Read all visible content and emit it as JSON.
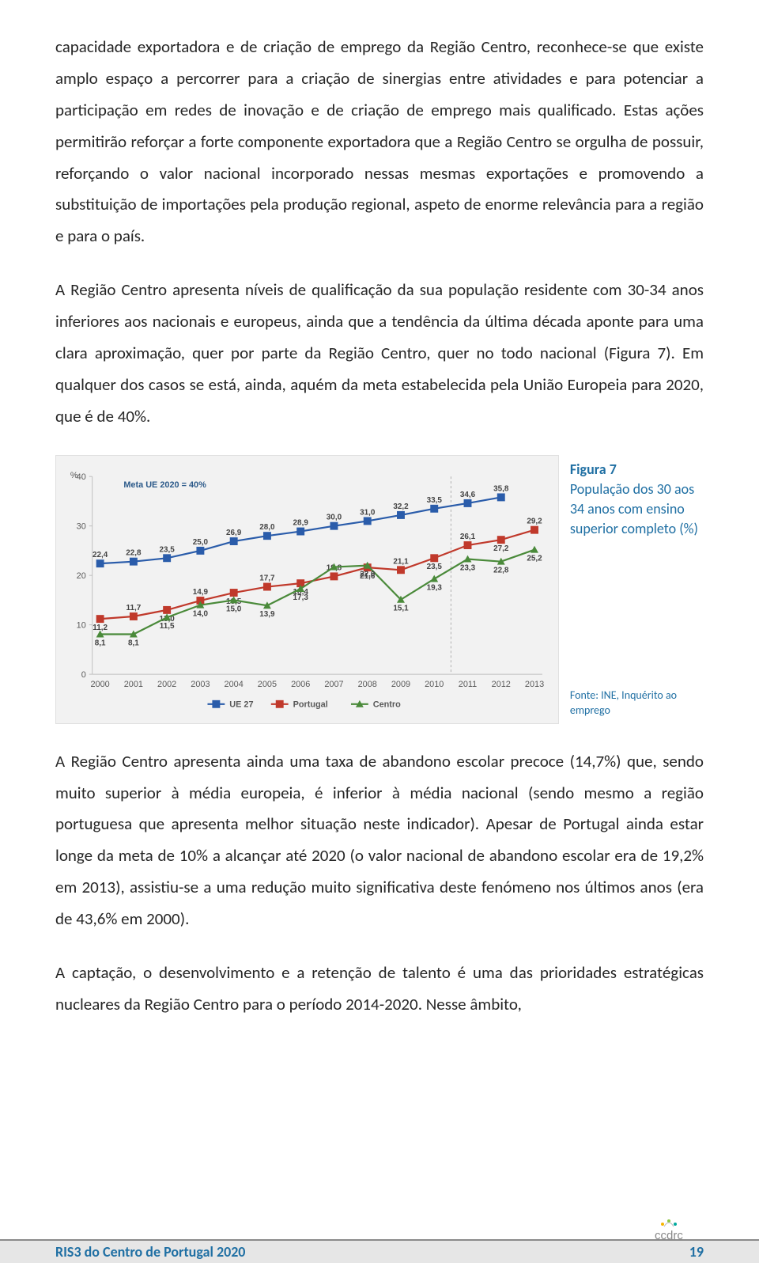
{
  "paragraphs": {
    "p1": "capacidade exportadora e de criação de emprego da Região Centro, reconhece-se que existe amplo espaço a percorrer para a criação de sinergias entre atividades e para potenciar a participação em redes de inovação e de criação de emprego mais qualificado. Estas ações permitirão reforçar a forte componente exportadora que a Região Centro se orgulha de possuir, reforçando o valor nacional incorporado nessas mesmas exportações e promovendo a substituição de importações pela produção regional, aspeto de enorme relevância para a região e para o país.",
    "p2": "A Região Centro apresenta níveis de qualificação da sua população residente com 30-34 anos inferiores aos nacionais e europeus, ainda que a tendência da última década aponte para uma clara aproximação, quer por parte da Região Centro, quer no todo nacional (Figura 7). Em qualquer dos casos se está, ainda, aquém da meta estabelecida pela União Europeia para 2020, que é de 40%.",
    "p3": "A Região Centro apresenta ainda uma taxa de abandono escolar precoce (14,7%) que, sendo muito superior à média europeia, é inferior à média nacional (sendo mesmo a região portuguesa que apresenta melhor situação neste indicador). Apesar de Portugal ainda estar longe da meta de 10% a alcançar até 2020 (o valor nacional de abandono escolar era de 19,2% em 2013), assistiu-se a uma redução muito significativa deste fenómeno nos últimos anos (era de 43,6% em 2000).",
    "p4": "A captação, o desenvolvimento e a retenção de talento é uma das prioridades estratégicas nucleares da Região Centro para o período 2014-2020. Nesse âmbito,"
  },
  "chart": {
    "type": "line",
    "background_color": "#f2f2f2",
    "plot_bg": "#f2f2f2",
    "ylim": [
      0,
      40
    ],
    "ytick_step": 10,
    "y_unit": "%",
    "meta_label": "Meta UE 2020 = 40%",
    "years": [
      "2000",
      "2001",
      "2002",
      "2003",
      "2004",
      "2005",
      "2006",
      "2007",
      "2008",
      "2009",
      "2010",
      "2011",
      "2012",
      "2013"
    ],
    "break_after_index": 10,
    "series": [
      {
        "name": "UE 27",
        "color": "#2a5caa",
        "marker": "square",
        "values": [
          22.4,
          22.8,
          23.5,
          25.0,
          26.9,
          28.0,
          28.9,
          30.0,
          31.0,
          32.2,
          33.5,
          34.6,
          35.8,
          null
        ],
        "labels": [
          "22,4",
          "22,8",
          "23,5",
          "25,0",
          "26,9",
          "28,0",
          "28,9",
          "30,0",
          "31,0",
          "32,2",
          "33,5",
          "34,6",
          "35,8",
          ""
        ]
      },
      {
        "name": "Portugal",
        "color": "#c0392b",
        "marker": "square",
        "values": [
          11.2,
          11.7,
          13.0,
          14.9,
          16.5,
          17.7,
          18.4,
          19.8,
          21.6,
          21.1,
          23.5,
          26.1,
          27.2,
          29.2
        ],
        "labels": [
          "11,2",
          "11,7",
          "13,0",
          "14,9",
          "16,5",
          "17,7",
          "18,4",
          "19,8",
          "21,6",
          "21,1",
          "23,5",
          "26,1",
          "27,2",
          "29,2"
        ]
      },
      {
        "name": "Centro",
        "color": "#4a8a3a",
        "marker": "triangle",
        "values": [
          8.1,
          8.1,
          11.5,
          14.0,
          15.0,
          13.9,
          17.3,
          21.7,
          22.0,
          15.1,
          19.3,
          23.3,
          22.8,
          25.2
        ],
        "labels": [
          "8,1",
          "8,1",
          "11,5",
          "14,0",
          "15,0",
          "13,9",
          "17,3",
          "",
          "22,0",
          "15,1",
          "19,3",
          "23,3",
          "22,8",
          "25,2"
        ]
      }
    ],
    "axis_color": "#bfbfbf",
    "grid_color": "#d9d9d9",
    "text_color": "#595959",
    "marker_size": 5,
    "line_width": 2.2
  },
  "caption": {
    "fig_label": "Figura 7",
    "title": "População dos 30 aos 34 anos com ensino superior completo (%)",
    "source": "Fonte: INE, Inquérito ao emprego"
  },
  "footer": {
    "title": "RIS3 do Centro de Portugal 2020",
    "page": "19"
  }
}
